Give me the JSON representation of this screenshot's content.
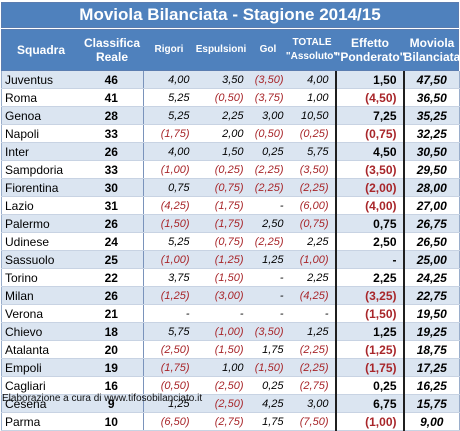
{
  "title": "Moviola Bilanciata - Stagione 2014/15",
  "headers": [
    "Squadra",
    "Classifica\nReale",
    "Rigori",
    "Espulsioni",
    "Gol",
    "TOTALE\n\"Assoluto\"",
    "Effetto\n\"Ponderato\"",
    "Moviola\nBilanciata"
  ],
  "rows": [
    {
      "team": "Juventus",
      "rank": "46",
      "rigori": "4,00",
      "espulsioni": "3,50",
      "gol": "(3,50)",
      "totale": "4,00",
      "effetto": "1,50",
      "moviola": "47,50"
    },
    {
      "team": "Roma",
      "rank": "41",
      "rigori": "5,25",
      "espulsioni": "(0,50)",
      "gol": "(3,75)",
      "totale": "1,00",
      "effetto": "(4,50)",
      "moviola": "36,50"
    },
    {
      "team": "Genoa",
      "rank": "28",
      "rigori": "5,25",
      "espulsioni": "2,25",
      "gol": "3,00",
      "totale": "10,50",
      "effetto": "7,25",
      "moviola": "35,25"
    },
    {
      "team": "Napoli",
      "rank": "33",
      "rigori": "(1,75)",
      "espulsioni": "2,00",
      "gol": "(0,50)",
      "totale": "(0,25)",
      "effetto": "(0,75)",
      "moviola": "32,25"
    },
    {
      "team": "Inter",
      "rank": "26",
      "rigori": "4,00",
      "espulsioni": "1,50",
      "gol": "0,25",
      "totale": "5,75",
      "effetto": "4,50",
      "moviola": "30,50"
    },
    {
      "team": "Sampdoria",
      "rank": "33",
      "rigori": "(1,00)",
      "espulsioni": "(0,25)",
      "gol": "(2,25)",
      "totale": "(3,50)",
      "effetto": "(3,50)",
      "moviola": "29,50"
    },
    {
      "team": "Fiorentina",
      "rank": "30",
      "rigori": "0,75",
      "espulsioni": "(0,75)",
      "gol": "(2,25)",
      "totale": "(2,25)",
      "effetto": "(2,00)",
      "moviola": "28,00"
    },
    {
      "team": "Lazio",
      "rank": "31",
      "rigori": "(4,25)",
      "espulsioni": "(1,75)",
      "gol": "-",
      "totale": "(6,00)",
      "effetto": "(4,00)",
      "moviola": "27,00"
    },
    {
      "team": "Palermo",
      "rank": "26",
      "rigori": "(1,50)",
      "espulsioni": "(1,75)",
      "gol": "2,50",
      "totale": "(0,75)",
      "effetto": "0,75",
      "moviola": "26,75"
    },
    {
      "team": "Udinese",
      "rank": "24",
      "rigori": "5,25",
      "espulsioni": "(0,75)",
      "gol": "(2,25)",
      "totale": "2,25",
      "effetto": "2,50",
      "moviola": "26,50"
    },
    {
      "team": "Sassuolo",
      "rank": "25",
      "rigori": "(1,00)",
      "espulsioni": "(1,25)",
      "gol": "1,25",
      "totale": "(1,00)",
      "effetto": "-",
      "moviola": "25,00"
    },
    {
      "team": "Torino",
      "rank": "22",
      "rigori": "3,75",
      "espulsioni": "(1,50)",
      "gol": "-",
      "totale": "2,25",
      "effetto": "2,25",
      "moviola": "24,25"
    },
    {
      "team": "Milan",
      "rank": "26",
      "rigori": "(1,25)",
      "espulsioni": "(3,00)",
      "gol": "-",
      "totale": "(4,25)",
      "effetto": "(3,25)",
      "moviola": "22,75"
    },
    {
      "team": "Verona",
      "rank": "21",
      "rigori": "-",
      "espulsioni": "-",
      "gol": "-",
      "totale": "-",
      "effetto": "(1,50)",
      "moviola": "19,50"
    },
    {
      "team": "Chievo",
      "rank": "18",
      "rigori": "5,75",
      "espulsioni": "(1,00)",
      "gol": "(3,50)",
      "totale": "1,25",
      "effetto": "1,25",
      "moviola": "19,25"
    },
    {
      "team": "Atalanta",
      "rank": "20",
      "rigori": "(2,50)",
      "espulsioni": "(1,50)",
      "gol": "1,75",
      "totale": "(2,25)",
      "effetto": "(1,25)",
      "moviola": "18,75"
    },
    {
      "team": "Empoli",
      "rank": "19",
      "rigori": "(1,75)",
      "espulsioni": "1,00",
      "gol": "(1,50)",
      "totale": "(2,25)",
      "effetto": "(1,75)",
      "moviola": "17,25"
    },
    {
      "team": "Cagliari",
      "rank": "16",
      "rigori": "(0,50)",
      "espulsioni": "(2,50)",
      "gol": "0,25",
      "totale": "(2,75)",
      "effetto": "0,25",
      "moviola": "16,25"
    },
    {
      "team": "Cesena",
      "rank": "9",
      "rigori": "1,25",
      "espulsioni": "(2,50)",
      "gol": "4,25",
      "totale": "3,00",
      "effetto": "6,75",
      "moviola": "15,75"
    },
    {
      "team": "Parma",
      "rank": "10",
      "rigori": "(6,50)",
      "espulsioni": "(2,75)",
      "gol": "1,75",
      "totale": "(7,50)",
      "effetto": "(1,00)",
      "moviola": "9,00"
    }
  ],
  "footer": "Elaborazione a cura di www.tifosobilanciato.it",
  "colors": {
    "header_bg": "#4f81bd",
    "row_band": "#dbe5f1",
    "negative": "#a8262a"
  }
}
